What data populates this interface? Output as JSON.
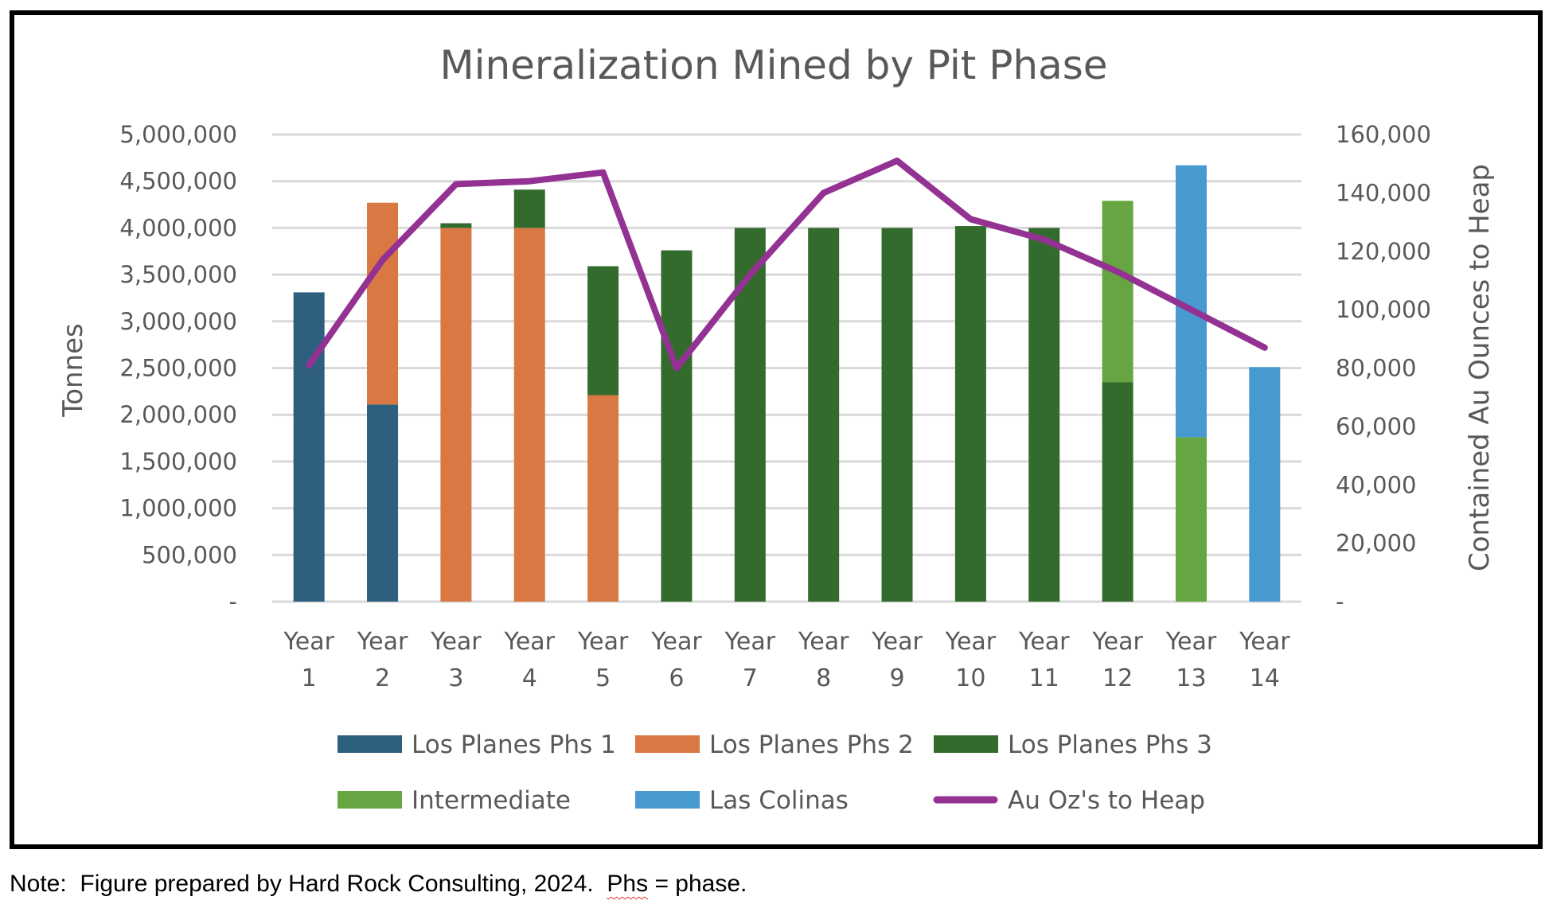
{
  "chart_data": {
    "type": "bar",
    "stacked": true,
    "title": "Mineralization Mined by Pit Phase",
    "xlabel": "",
    "ylabel": "Tonnes",
    "y2label": "Contained Au Ounces to Heap",
    "categories": [
      "Year 1",
      "Year 2",
      "Year 3",
      "Year 4",
      "Year 5",
      "Year 6",
      "Year 7",
      "Year 8",
      "Year 9",
      "Year 10",
      "Year 11",
      "Year 12",
      "Year 13",
      "Year 14"
    ],
    "category_lines": [
      [
        "Year",
        "1"
      ],
      [
        "Year",
        "2"
      ],
      [
        "Year",
        "3"
      ],
      [
        "Year",
        "4"
      ],
      [
        "Year",
        "5"
      ],
      [
        "Year",
        "6"
      ],
      [
        "Year",
        "7"
      ],
      [
        "Year",
        "8"
      ],
      [
        "Year",
        "9"
      ],
      [
        "Year",
        "10"
      ],
      [
        "Year",
        "11"
      ],
      [
        "Year",
        "12"
      ],
      [
        "Year",
        "13"
      ],
      [
        "Year",
        "14"
      ]
    ],
    "ylim": [
      0,
      5000000
    ],
    "y2lim": [
      0,
      160000
    ],
    "yticks": [
      0,
      500000,
      1000000,
      1500000,
      2000000,
      2500000,
      3000000,
      3500000,
      4000000,
      4500000,
      5000000
    ],
    "ytick_labels": [
      "-",
      "500,000",
      "1,000,000",
      "1,500,000",
      "2,000,000",
      "2,500,000",
      "3,000,000",
      "3,500,000",
      "4,000,000",
      "4,500,000",
      "5,000,000"
    ],
    "y2ticks": [
      0,
      20000,
      40000,
      60000,
      80000,
      100000,
      120000,
      140000,
      160000
    ],
    "y2tick_labels": [
      "-",
      "20,000",
      "40,000",
      "60,000",
      "80,000",
      "100,000",
      "120,000",
      "140,000",
      "160,000"
    ],
    "grid": true,
    "legend_position": "bottom",
    "series": [
      {
        "name": "Los Planes Phs 1",
        "type": "bar",
        "axis": "left",
        "color": "#2e5f7f",
        "values": [
          3310000,
          2110000,
          0,
          0,
          0,
          0,
          0,
          0,
          0,
          0,
          0,
          0,
          0,
          0
        ]
      },
      {
        "name": "Los Planes Phs 2",
        "type": "bar",
        "axis": "left",
        "color": "#d97842",
        "values": [
          0,
          2160000,
          4000000,
          4000000,
          2210000,
          0,
          0,
          0,
          0,
          0,
          0,
          0,
          0,
          0
        ]
      },
      {
        "name": "Los Planes Phs 3",
        "type": "bar",
        "axis": "left",
        "color": "#336b2d",
        "values": [
          0,
          0,
          50000,
          410000,
          1380000,
          3760000,
          4000000,
          4000000,
          4000000,
          4020000,
          4000000,
          2350000,
          0,
          0
        ]
      },
      {
        "name": "Intermediate",
        "type": "bar",
        "axis": "left",
        "color": "#66a642",
        "values": [
          0,
          0,
          0,
          0,
          0,
          0,
          0,
          0,
          0,
          0,
          0,
          1940000,
          1760000,
          0
        ]
      },
      {
        "name": "Las Colinas",
        "type": "bar",
        "axis": "left",
        "color": "#4799cf",
        "values": [
          0,
          0,
          0,
          0,
          0,
          0,
          0,
          0,
          0,
          0,
          0,
          0,
          2910000,
          2510000
        ]
      },
      {
        "name": "Au Oz's to Heap",
        "type": "line",
        "axis": "right",
        "color": "#943293",
        "values": [
          81000,
          117000,
          143000,
          144000,
          147000,
          80000,
          112000,
          140000,
          151000,
          131000,
          124000,
          113000,
          100000,
          87000
        ]
      }
    ]
  },
  "footnote": {
    "prefix": "Note:  Figure prepared by Hard Rock Consulting, 2024.  ",
    "flagged_word": "Phs",
    "suffix": " = phase."
  }
}
